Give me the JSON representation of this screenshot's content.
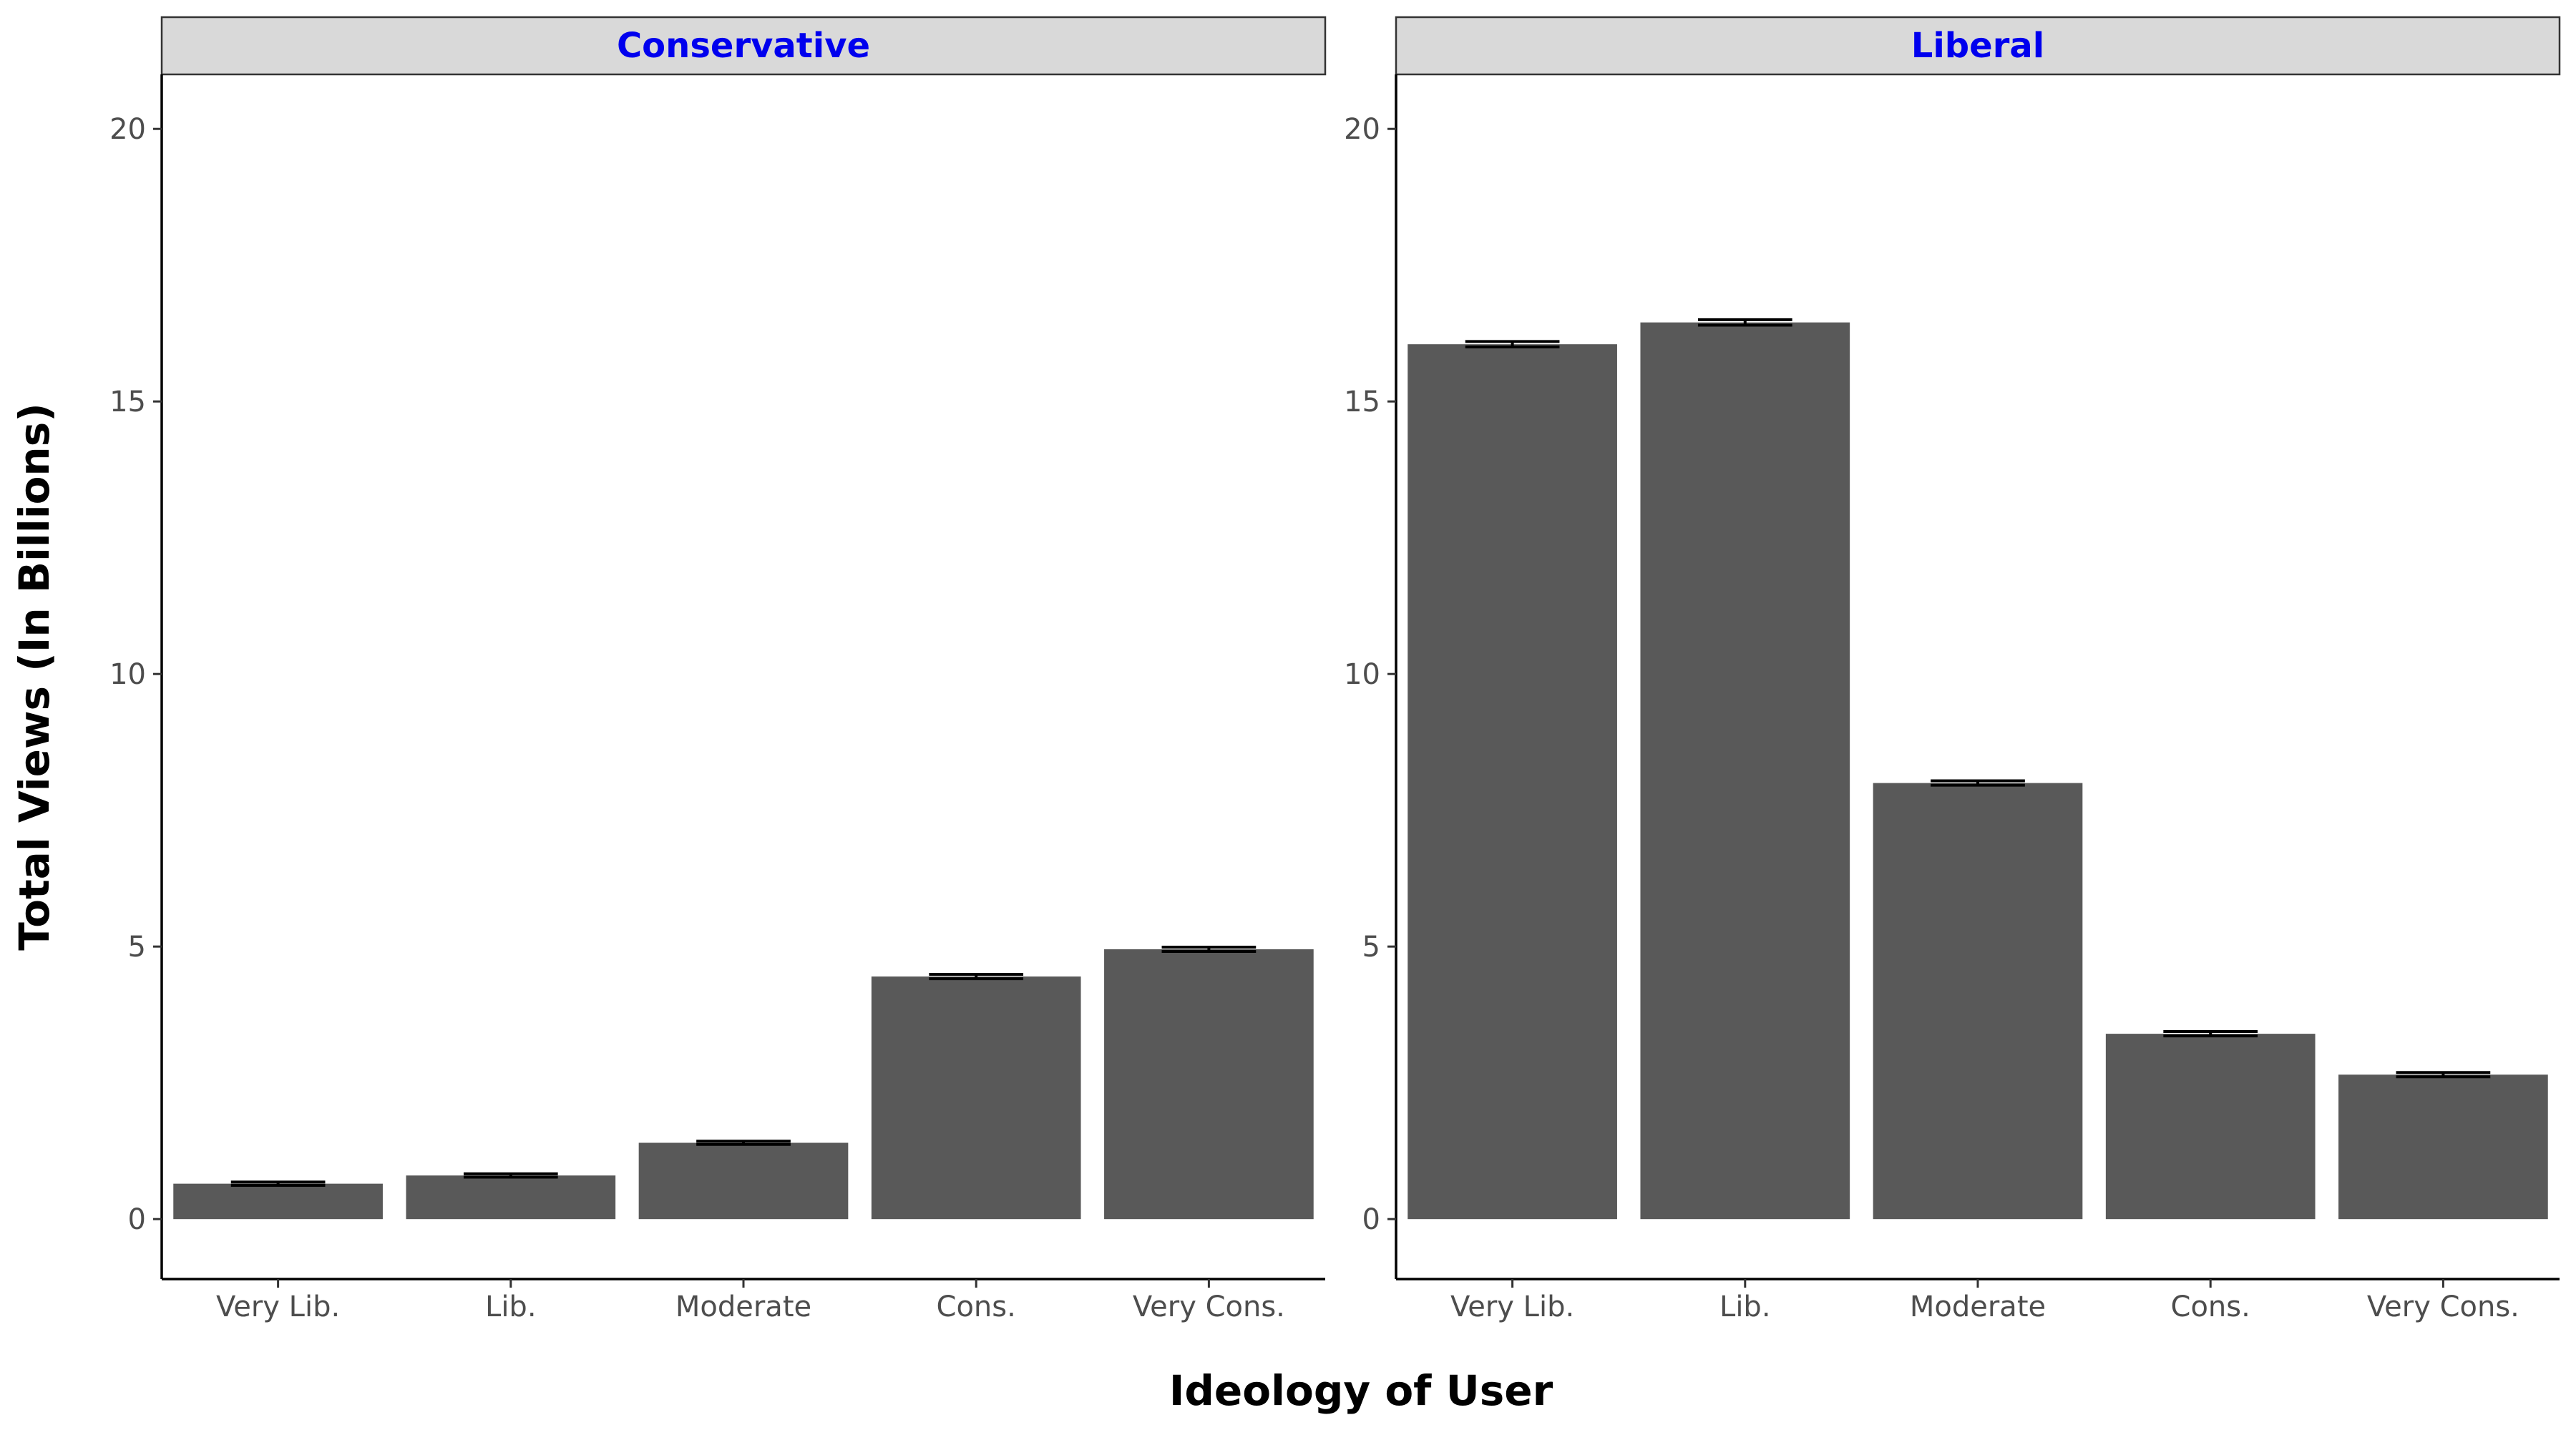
{
  "chart_data": {
    "type": "bar",
    "xlabel": "Ideology of User",
    "ylabel": "Total Views (In Billions)",
    "ylim": [
      -1.1,
      21
    ],
    "yticks": [
      0,
      5,
      10,
      15,
      20
    ],
    "grid": false,
    "bar_color": "#595959",
    "error_bar_color": "#000000",
    "strip_fill": "#d9d9d9",
    "strip_text_color": "#0000ee",
    "categories": [
      "Very Lib.",
      "Lib.",
      "Moderate",
      "Cons.",
      "Very Cons."
    ],
    "panels": [
      {
        "title": "Conservative",
        "values": [
          0.65,
          0.8,
          1.4,
          4.45,
          4.95
        ],
        "errors": [
          0.03,
          0.03,
          0.03,
          0.04,
          0.04
        ]
      },
      {
        "title": "Liberal",
        "values": [
          16.05,
          16.45,
          8.0,
          3.4,
          2.65
        ],
        "errors": [
          0.05,
          0.05,
          0.04,
          0.04,
          0.04
        ]
      }
    ]
  }
}
